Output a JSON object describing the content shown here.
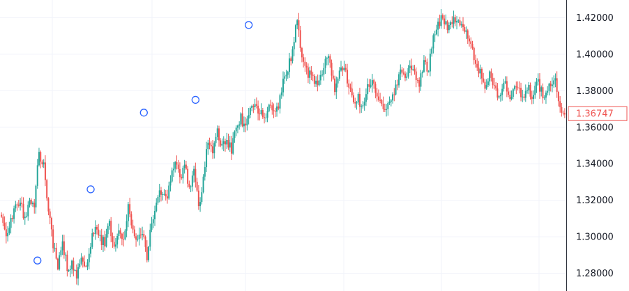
{
  "chart_data": {
    "type": "candlestick",
    "title": "",
    "xlabel": "",
    "ylabel": "",
    "ylim": [
      1.2703,
      1.4297
    ],
    "y_ticks": [
      "1.42000",
      "1.40000",
      "1.38000",
      "1.36000",
      "1.34000",
      "1.32000",
      "1.30000",
      "1.28000"
    ],
    "y_tick_values": [
      1.42,
      1.4,
      1.38,
      1.36,
      1.34,
      1.32,
      1.3,
      1.28
    ],
    "last_price": 1.36747,
    "last_price_label": "1.36747",
    "grid": true,
    "colors": {
      "up": "#26a69a",
      "down": "#ef5350",
      "grid": "#f0f3fa",
      "axis_text": "#131722",
      "axis_line": "#2a2e39",
      "marker": "#2962ff",
      "price_tag_border": "#ef5350"
    },
    "anchors": [
      1.311,
      1.303,
      1.309,
      1.316,
      1.321,
      1.309,
      1.322,
      1.318,
      1.346,
      1.339,
      1.315,
      1.296,
      1.285,
      1.296,
      1.283,
      1.286,
      1.276,
      1.291,
      1.284,
      1.297,
      1.305,
      1.299,
      1.297,
      1.306,
      1.295,
      1.306,
      1.299,
      1.316,
      1.305,
      1.297,
      1.302,
      1.29,
      1.309,
      1.318,
      1.326,
      1.32,
      1.331,
      1.339,
      1.333,
      1.339,
      1.327,
      1.337,
      1.317,
      1.33,
      1.354,
      1.346,
      1.357,
      1.349,
      1.351,
      1.348,
      1.362,
      1.365,
      1.359,
      1.368,
      1.372,
      1.368,
      1.365,
      1.373,
      1.366,
      1.371,
      1.387,
      1.392,
      1.401,
      1.421,
      1.398,
      1.391,
      1.387,
      1.384,
      1.388,
      1.398,
      1.396,
      1.381,
      1.389,
      1.392,
      1.382,
      1.374,
      1.376,
      1.369,
      1.381,
      1.388,
      1.376,
      1.373,
      1.369,
      1.374,
      1.382,
      1.393,
      1.387,
      1.392,
      1.39,
      1.383,
      1.395,
      1.39,
      1.412,
      1.416,
      1.421,
      1.413,
      1.416,
      1.421,
      1.417,
      1.411,
      1.405,
      1.392,
      1.389,
      1.38,
      1.39,
      1.38,
      1.376,
      1.385,
      1.377,
      1.381,
      1.383,
      1.377,
      1.383,
      1.377,
      1.386,
      1.379,
      1.377,
      1.385,
      1.386,
      1.37,
      1.367
    ],
    "markers": [
      {
        "x_index": 23,
        "price": 1.287
      },
      {
        "x_index": 57,
        "price": 1.326
      },
      {
        "x_index": 91,
        "price": 1.368
      },
      {
        "x_index": 124,
        "price": 1.375
      },
      {
        "x_index": 158,
        "price": 1.416
      }
    ]
  }
}
